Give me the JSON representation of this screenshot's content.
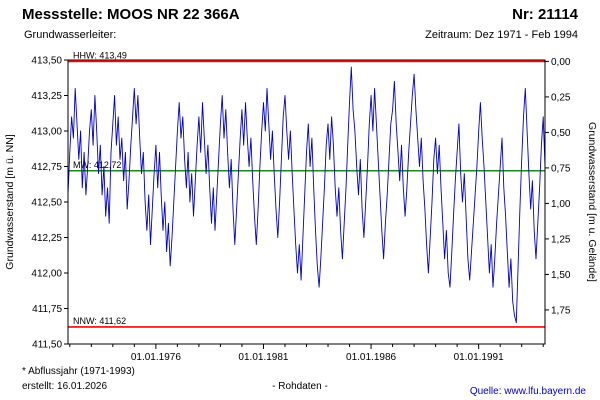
{
  "header": {
    "station_label": "Messstelle: MOOS NR 22 366A",
    "number_label": "Nr: 21114",
    "aquifer_label": "Grundwasserleiter:",
    "period_label": "Zeitraum: Dez 1971 - Feb 1994"
  },
  "footer": {
    "note": "* Abflussjahr (1971-1993)",
    "created": "erstellt: 16.01.2026",
    "center_label": "- Rohdaten -",
    "source_prefix": "Quelle: ",
    "source_link": "www.lfu.bayern.de"
  },
  "colors": {
    "series_blue": "#0000cc",
    "extreme_red": "#ff0000",
    "mean_green": "#009900",
    "link_blue": "#0000cc",
    "axis_black": "#000000"
  },
  "chart_data": {
    "type": "line",
    "title": "",
    "legend": "none",
    "grid": "off",
    "y_left": {
      "label": "Grundwasserstand [m ü. NN]",
      "min": 411.5,
      "max": 413.5,
      "ticks": [
        {
          "label": "413,50",
          "value": 413.5
        },
        {
          "label": "413,25",
          "value": 413.25
        },
        {
          "label": "413,00",
          "value": 413.0
        },
        {
          "label": "412,75",
          "value": 412.75
        },
        {
          "label": "412,50",
          "value": 412.5
        },
        {
          "label": "412,25",
          "value": 412.25
        },
        {
          "label": "412,00",
          "value": 412.0
        },
        {
          "label": "411,75",
          "value": 411.75
        },
        {
          "label": "411,50",
          "value": 411.5
        }
      ]
    },
    "y_right": {
      "label": "Grundwasserstand [m u. Gelände]",
      "surface_level": 413.49,
      "ticks": [
        {
          "label": "0,00",
          "value": 0.0
        },
        {
          "label": "0,25",
          "value": 0.25
        },
        {
          "label": "0,50",
          "value": 0.5
        },
        {
          "label": "0,75",
          "value": 0.75
        },
        {
          "label": "1,00",
          "value": 1.0
        },
        {
          "label": "1,25",
          "value": 1.25
        },
        {
          "label": "1,50",
          "value": 1.5
        },
        {
          "label": "1,75",
          "value": 1.75
        }
      ]
    },
    "x_axis": {
      "min": 1971.9167,
      "max": 1994.0833,
      "major_ticks": [
        {
          "label": "01.01.1976",
          "value": 1976
        },
        {
          "label": "01.01.1981",
          "value": 1981
        },
        {
          "label": "01.01.1986",
          "value": 1986
        },
        {
          "label": "01.01.1991",
          "value": 1991
        }
      ],
      "minor_tick_every_years": 1
    },
    "reference_lines": [
      {
        "name": "HHW",
        "label": "HHW: 413,49",
        "value": 413.49,
        "color": "#ff0000"
      },
      {
        "name": "MW",
        "label": "MW: 412,72",
        "value": 412.72,
        "color": "#009900"
      },
      {
        "name": "NNW",
        "label": "NNW: 411,62",
        "value": 411.62,
        "color": "#ff0000"
      }
    ],
    "series": [
      {
        "name": "Rohdaten",
        "color": "#0000cc",
        "start_year_frac": 1971.9167,
        "step_years": 0.0833333,
        "values": [
          412.55,
          412.85,
          413.1,
          412.95,
          413.3,
          413.05,
          412.8,
          413.0,
          412.6,
          412.85,
          412.55,
          412.75,
          413.0,
          413.15,
          412.9,
          413.25,
          413.0,
          412.7,
          412.9,
          412.55,
          412.75,
          412.4,
          412.6,
          412.35,
          412.85,
          413.05,
          413.25,
          412.9,
          413.1,
          412.8,
          412.95,
          412.65,
          412.85,
          412.45,
          412.65,
          412.9,
          413.1,
          413.3,
          413.05,
          413.25,
          412.95,
          412.7,
          412.85,
          412.5,
          412.3,
          412.55,
          412.2,
          412.45,
          412.7,
          412.9,
          412.6,
          412.85,
          412.55,
          412.3,
          412.5,
          412.15,
          412.35,
          412.05,
          412.25,
          412.5,
          412.75,
          413.0,
          413.2,
          412.95,
          413.1,
          412.8,
          412.6,
          412.85,
          412.5,
          412.7,
          412.4,
          412.65,
          412.9,
          413.1,
          412.85,
          413.2,
          412.95,
          412.7,
          412.9,
          412.6,
          412.35,
          412.6,
          412.3,
          412.55,
          412.8,
          413.05,
          413.25,
          412.95,
          413.15,
          412.85,
          412.6,
          412.8,
          412.45,
          412.2,
          412.45,
          412.7,
          412.95,
          413.15,
          412.9,
          413.2,
          412.95,
          412.75,
          412.95,
          412.65,
          412.4,
          412.2,
          412.45,
          412.75,
          413.0,
          413.2,
          413.0,
          413.3,
          413.05,
          412.8,
          413.0,
          412.7,
          412.45,
          412.25,
          412.5,
          412.8,
          413.1,
          413.25,
          413.0,
          412.8,
          413.0,
          412.7,
          412.45,
          412.2,
          412.0,
          412.2,
          411.95,
          412.25,
          412.55,
          412.85,
          413.05,
          412.75,
          412.95,
          412.6,
          412.3,
          412.05,
          411.9,
          412.1,
          412.35,
          412.6,
          412.9,
          413.05,
          412.8,
          413.1,
          412.9,
          412.6,
          412.4,
          412.6,
          412.3,
          412.1,
          412.35,
          412.6,
          412.9,
          413.2,
          413.45,
          413.15,
          413.0,
          412.75,
          412.55,
          412.8,
          412.45,
          412.25,
          412.5,
          412.75,
          413.05,
          413.25,
          413.0,
          413.3,
          413.05,
          412.8,
          412.55,
          412.3,
          412.1,
          412.35,
          412.55,
          412.8,
          413.05,
          413.15,
          413.35,
          413.05,
          412.85,
          412.65,
          412.9,
          412.6,
          412.4,
          412.6,
          412.85,
          413.05,
          413.25,
          413.4,
          413.15,
          412.95,
          412.75,
          412.95,
          412.65,
          412.45,
          412.2,
          412.0,
          412.25,
          412.5,
          412.8,
          412.95,
          412.7,
          412.9,
          412.6,
          412.35,
          412.1,
          412.3,
          412.0,
          411.9,
          412.15,
          412.4,
          412.65,
          412.85,
          413.05,
          412.7,
          412.5,
          412.7,
          412.4,
          412.1,
          411.95,
          412.15,
          412.35,
          412.55,
          412.75,
          413.0,
          413.2,
          412.95,
          412.75,
          412.5,
          412.25,
          412.0,
          412.2,
          411.9,
          412.1,
          412.35,
          412.55,
          412.75,
          412.95,
          412.6,
          412.4,
          412.15,
          411.9,
          412.1,
          411.8,
          411.7,
          411.65,
          412.05,
          412.45,
          412.8,
          413.1,
          413.3,
          413.0,
          412.7,
          412.45,
          412.65,
          412.3,
          412.1,
          412.35,
          412.6,
          412.9,
          413.1,
          412.75
        ]
      }
    ]
  }
}
